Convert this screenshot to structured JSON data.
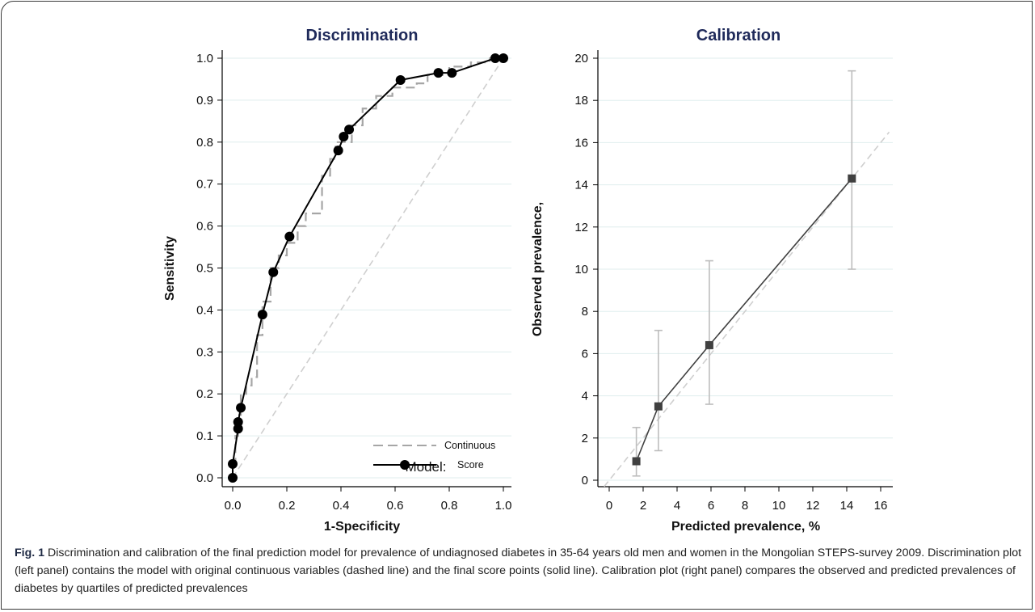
{
  "chart_data": [
    {
      "type": "line",
      "title": "Discrimination",
      "xlabel": "1-Specificity",
      "ylabel": "Sensitivity",
      "xlim": [
        0,
        1
      ],
      "ylim": [
        0,
        1
      ],
      "x_ticks": [
        "0.0",
        "0.2",
        "0.4",
        "0.6",
        "0.8",
        "1.0"
      ],
      "y_ticks": [
        "0.0",
        "0.1",
        "0.2",
        "0.3",
        "0.4",
        "0.5",
        "0.6",
        "0.7",
        "0.8",
        "0.9",
        "1.0"
      ],
      "grid": true,
      "legend_title": "Model:",
      "legend_position": "bottom-right",
      "series": [
        {
          "name": "Continuous",
          "style": "dashed",
          "color": "#a6a6a6",
          "x": [
            0.0,
            0.0,
            0.01,
            0.01,
            0.02,
            0.02,
            0.03,
            0.03,
            0.05,
            0.05,
            0.07,
            0.07,
            0.09,
            0.09,
            0.11,
            0.11,
            0.14,
            0.14,
            0.17,
            0.17,
            0.2,
            0.2,
            0.24,
            0.24,
            0.27,
            0.27,
            0.33,
            0.33,
            0.36,
            0.36,
            0.38,
            0.38,
            0.44,
            0.44,
            0.48,
            0.48,
            0.53,
            0.53,
            0.59,
            0.59,
            0.68,
            0.68,
            0.72,
            0.72,
            0.8,
            0.8,
            0.88,
            0.88,
            0.95,
            0.95,
            1.0
          ],
          "y": [
            0.0,
            0.02,
            0.02,
            0.1,
            0.1,
            0.15,
            0.15,
            0.2,
            0.2,
            0.22,
            0.22,
            0.24,
            0.24,
            0.34,
            0.34,
            0.42,
            0.42,
            0.5,
            0.5,
            0.53,
            0.53,
            0.56,
            0.56,
            0.6,
            0.6,
            0.63,
            0.63,
            0.72,
            0.72,
            0.76,
            0.76,
            0.8,
            0.8,
            0.84,
            0.84,
            0.88,
            0.88,
            0.91,
            0.91,
            0.93,
            0.93,
            0.94,
            0.94,
            0.96,
            0.96,
            0.98,
            0.98,
            0.99,
            0.99,
            1.0,
            1.0
          ]
        },
        {
          "name": "Score",
          "style": "solid",
          "color": "#000000",
          "x": [
            0.0,
            0.0,
            0.02,
            0.02,
            0.03,
            0.11,
            0.15,
            0.21,
            0.39,
            0.41,
            0.43,
            0.62,
            0.76,
            0.81,
            0.97,
            1.0
          ],
          "y": [
            0.0,
            0.033,
            0.117,
            0.133,
            0.167,
            0.389,
            0.49,
            0.575,
            0.78,
            0.813,
            0.83,
            0.948,
            0.965,
            0.965,
            1.0,
            1.0
          ]
        },
        {
          "name": "",
          "style": "dashed",
          "color": "#cfcfcf",
          "x": [
            0,
            1
          ],
          "y": [
            0,
            1
          ]
        }
      ]
    },
    {
      "type": "scatter",
      "title": "Calibration",
      "xlabel": "Predicted prevalence, %",
      "ylabel": "Observed prevalence,",
      "xlim": [
        -0.5,
        16.5
      ],
      "ylim": [
        -0.3,
        20.5
      ],
      "x_ticks": [
        "0",
        "2",
        "4",
        "6",
        "8",
        "10",
        "12",
        "14",
        "16"
      ],
      "y_ticks": [
        "0",
        "2",
        "4",
        "6",
        "8",
        "10",
        "12",
        "14",
        "16",
        "18",
        "20"
      ],
      "grid": true,
      "series": [
        {
          "name": "",
          "style": "solid",
          "color": "#404040",
          "x": [
            1.6,
            2.9,
            5.9,
            14.3
          ],
          "y": [
            0.9,
            3.5,
            6.4,
            14.3
          ],
          "ci_low": [
            0.2,
            1.4,
            3.6,
            10.0
          ],
          "ci_high": [
            2.5,
            7.1,
            10.4,
            19.4
          ]
        },
        {
          "name": "",
          "style": "dashed",
          "color": "#cfcfcf",
          "x": [
            -0.3,
            16.5
          ],
          "y": [
            -0.3,
            16.5
          ]
        }
      ]
    }
  ],
  "caption": {
    "lead": "Fig. 1",
    "text": " Discrimination and calibration of the final prediction model for prevalence of undiagnosed diabetes in 35-64 years old men and women in the Mongolian STEPS-survey 2009. Discrimination plot (left panel) contains the model with original continuous variables (dashed line) and the final score points (solid line). Calibration plot (right panel) compares the observed and predicted prevalences of diabetes by quartiles of predicted prevalences"
  },
  "colors": {
    "title": "#1f2a5a",
    "grid": "#dfeeee"
  }
}
